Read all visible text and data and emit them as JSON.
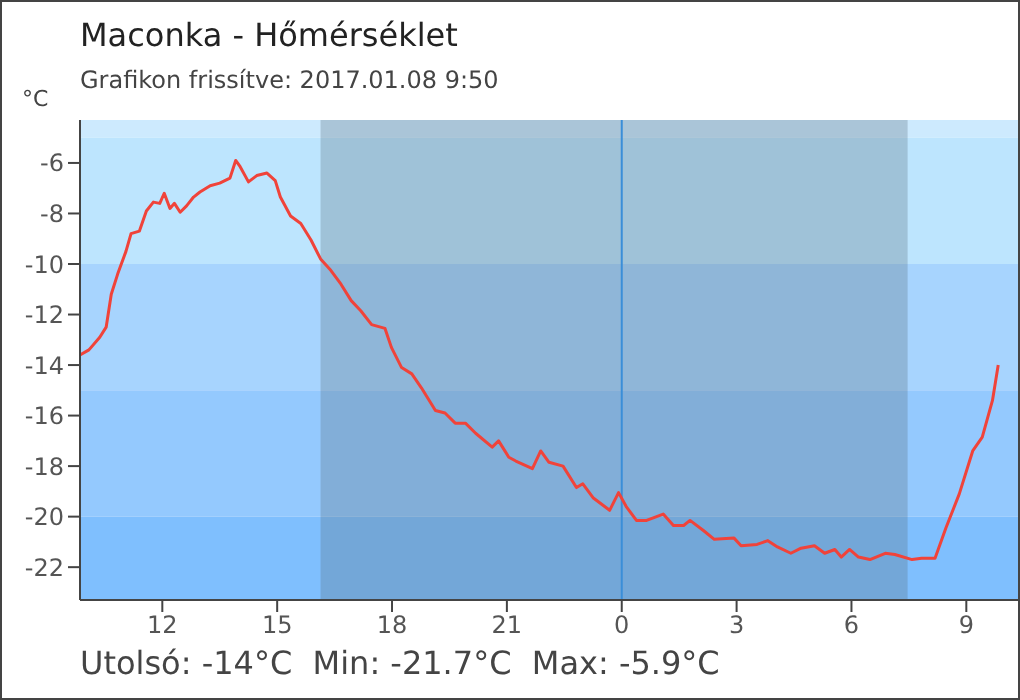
{
  "chart_data": {
    "type": "line",
    "title": "Maconka - Hőmérséklet",
    "subtitle": "Grafikon frissítve: 2017.01.08 9:50",
    "ylabel": "°C",
    "annotations": [
      "Utolsó: -14°C  Min: -21.7°C  Max: -5.9°C"
    ],
    "x": [
      "2017-01-07T09:51",
      "2017-01-07T10:05",
      "2017-01-07T10:22",
      "2017-01-07T10:32",
      "2017-01-07T10:40",
      "2017-01-07T10:50",
      "2017-01-07T11:03",
      "2017-01-07T11:11",
      "2017-01-07T11:24",
      "2017-01-07T11:35",
      "2017-01-07T11:46",
      "2017-01-07T11:56",
      "2017-01-07T12:03",
      "2017-01-07T12:12",
      "2017-01-07T12:19",
      "2017-01-07T12:28",
      "2017-01-07T12:38",
      "2017-01-07T12:49",
      "2017-01-07T12:59",
      "2017-01-07T13:15",
      "2017-01-07T13:30",
      "2017-01-07T13:46",
      "2017-01-07T13:55",
      "2017-01-07T14:02",
      "2017-01-07T14:15",
      "2017-01-07T14:28",
      "2017-01-07T14:44",
      "2017-01-07T14:57",
      "2017-01-07T15:05",
      "2017-01-07T15:21",
      "2017-01-07T15:37",
      "2017-01-07T15:53",
      "2017-01-07T16:08",
      "2017-01-07T16:24",
      "2017-01-07T16:40",
      "2017-01-07T16:56",
      "2017-01-07T17:11",
      "2017-01-07T17:28",
      "2017-01-07T17:49",
      "2017-01-07T17:59",
      "2017-01-07T18:15",
      "2017-01-07T18:31",
      "2017-01-07T18:46",
      "2017-01-07T19:08",
      "2017-01-07T19:23",
      "2017-01-07T19:39",
      "2017-01-07T19:55",
      "2017-01-07T20:11",
      "2017-01-07T20:37",
      "2017-01-07T20:47",
      "2017-01-07T21:03",
      "2017-01-07T21:14",
      "2017-01-07T21:40",
      "2017-01-07T21:53",
      "2017-01-07T22:06",
      "2017-01-07T22:28",
      "2017-01-07T22:49",
      "2017-01-07T22:59",
      "2017-01-07T23:15",
      "2017-01-07T23:41",
      "2017-01-07T23:55",
      "2017-01-08T00:07",
      "2017-01-08T00:23",
      "2017-01-08T00:39",
      "2017-01-08T01:05",
      "2017-01-08T01:21",
      "2017-01-08T01:37",
      "2017-01-08T01:47",
      "2017-01-08T02:08",
      "2017-01-08T02:25",
      "2017-01-08T02:56",
      "2017-01-08T03:07",
      "2017-01-08T03:32",
      "2017-01-08T03:49",
      "2017-01-08T04:04",
      "2017-01-08T04:25",
      "2017-01-08T04:41",
      "2017-01-08T05:02",
      "2017-01-08T05:18",
      "2017-01-08T05:34",
      "2017-01-08T05:44",
      "2017-01-08T05:57",
      "2017-01-08T06:11",
      "2017-01-08T06:29",
      "2017-01-08T06:53",
      "2017-01-08T07:08",
      "2017-01-08T07:35",
      "2017-01-08T07:50",
      "2017-01-08T08:11",
      "2017-01-08T08:28",
      "2017-01-08T08:49",
      "2017-01-08T09:10",
      "2017-01-08T09:25",
      "2017-01-08T09:41",
      "2017-01-08T09:50"
    ],
    "series": [
      {
        "color": "#f0433a",
        "values": [
          -13.6,
          -13.4,
          -12.9,
          -12.5,
          -11.2,
          -10.4,
          -9.5,
          -8.8,
          -8.7,
          -7.9,
          -7.55,
          -7.6,
          -7.2,
          -7.8,
          -7.6,
          -7.95,
          -7.7,
          -7.35,
          -7.15,
          -6.9,
          -6.8,
          -6.6,
          -5.9,
          -6.15,
          -6.75,
          -6.5,
          -6.4,
          -6.7,
          -7.35,
          -8.1,
          -8.4,
          -9.05,
          -9.8,
          -10.25,
          -10.8,
          -11.45,
          -11.85,
          -12.4,
          -12.55,
          -13.3,
          -14.1,
          -14.35,
          -14.9,
          -15.8,
          -15.9,
          -16.3,
          -16.3,
          -16.7,
          -17.25,
          -17.0,
          -17.65,
          -17.8,
          -18.1,
          -17.4,
          -17.85,
          -18.0,
          -18.85,
          -18.7,
          -19.25,
          -19.75,
          -19.05,
          -19.6,
          -20.15,
          -20.15,
          -19.9,
          -20.35,
          -20.35,
          -20.15,
          -20.55,
          -20.9,
          -20.85,
          -21.15,
          -21.1,
          -20.95,
          -21.2,
          -21.45,
          -21.25,
          -21.15,
          -21.45,
          -21.3,
          -21.6,
          -21.3,
          -21.6,
          -21.7,
          -21.45,
          -21.5,
          -21.7,
          -21.65,
          -21.65,
          -20.45,
          -19.1,
          -17.4,
          -16.85,
          -15.4,
          -14.0
        ]
      }
    ],
    "xlim": [
      "2017-01-07T09:51",
      "2017-01-08T10:21"
    ],
    "ylim": [
      -23.3,
      -4.3
    ],
    "xticks": [
      {
        "value": "2017-01-07T12:00",
        "label": "12"
      },
      {
        "value": "2017-01-07T15:00",
        "label": "15"
      },
      {
        "value": "2017-01-07T18:00",
        "label": "18"
      },
      {
        "value": "2017-01-07T21:00",
        "label": "21"
      },
      {
        "value": "2017-01-08T00:00",
        "label": "0"
      },
      {
        "value": "2017-01-08T03:00",
        "label": "3"
      },
      {
        "value": "2017-01-08T06:00",
        "label": "6"
      },
      {
        "value": "2017-01-08T09:00",
        "label": "9"
      }
    ],
    "yticks": [
      -22,
      -20,
      -18,
      -16,
      -14,
      -12,
      -10,
      -8,
      -6
    ],
    "bands": [
      {
        "axis": "y",
        "from": -5,
        "to": -4.3,
        "color": "#cdeafe"
      },
      {
        "axis": "y",
        "from": -10,
        "to": -5,
        "color": "#bde5fe"
      },
      {
        "axis": "y",
        "from": -15,
        "to": -10,
        "color": "#a7d4fe"
      },
      {
        "axis": "y",
        "from": -20,
        "to": -15,
        "color": "#94c9fe"
      },
      {
        "axis": "y",
        "from": -23.3,
        "to": -20,
        "color": "#7fbffe"
      },
      {
        "axis": "x",
        "from": "2017-01-07T16:08",
        "to": "2017-01-08T07:28",
        "color": "#5a7080"
      }
    ],
    "ref_lines": [
      {
        "axis": "x",
        "value": "2017-01-08T00:00",
        "color": "#3a8ed8"
      }
    ],
    "line_style": "solid",
    "marker": "none"
  }
}
